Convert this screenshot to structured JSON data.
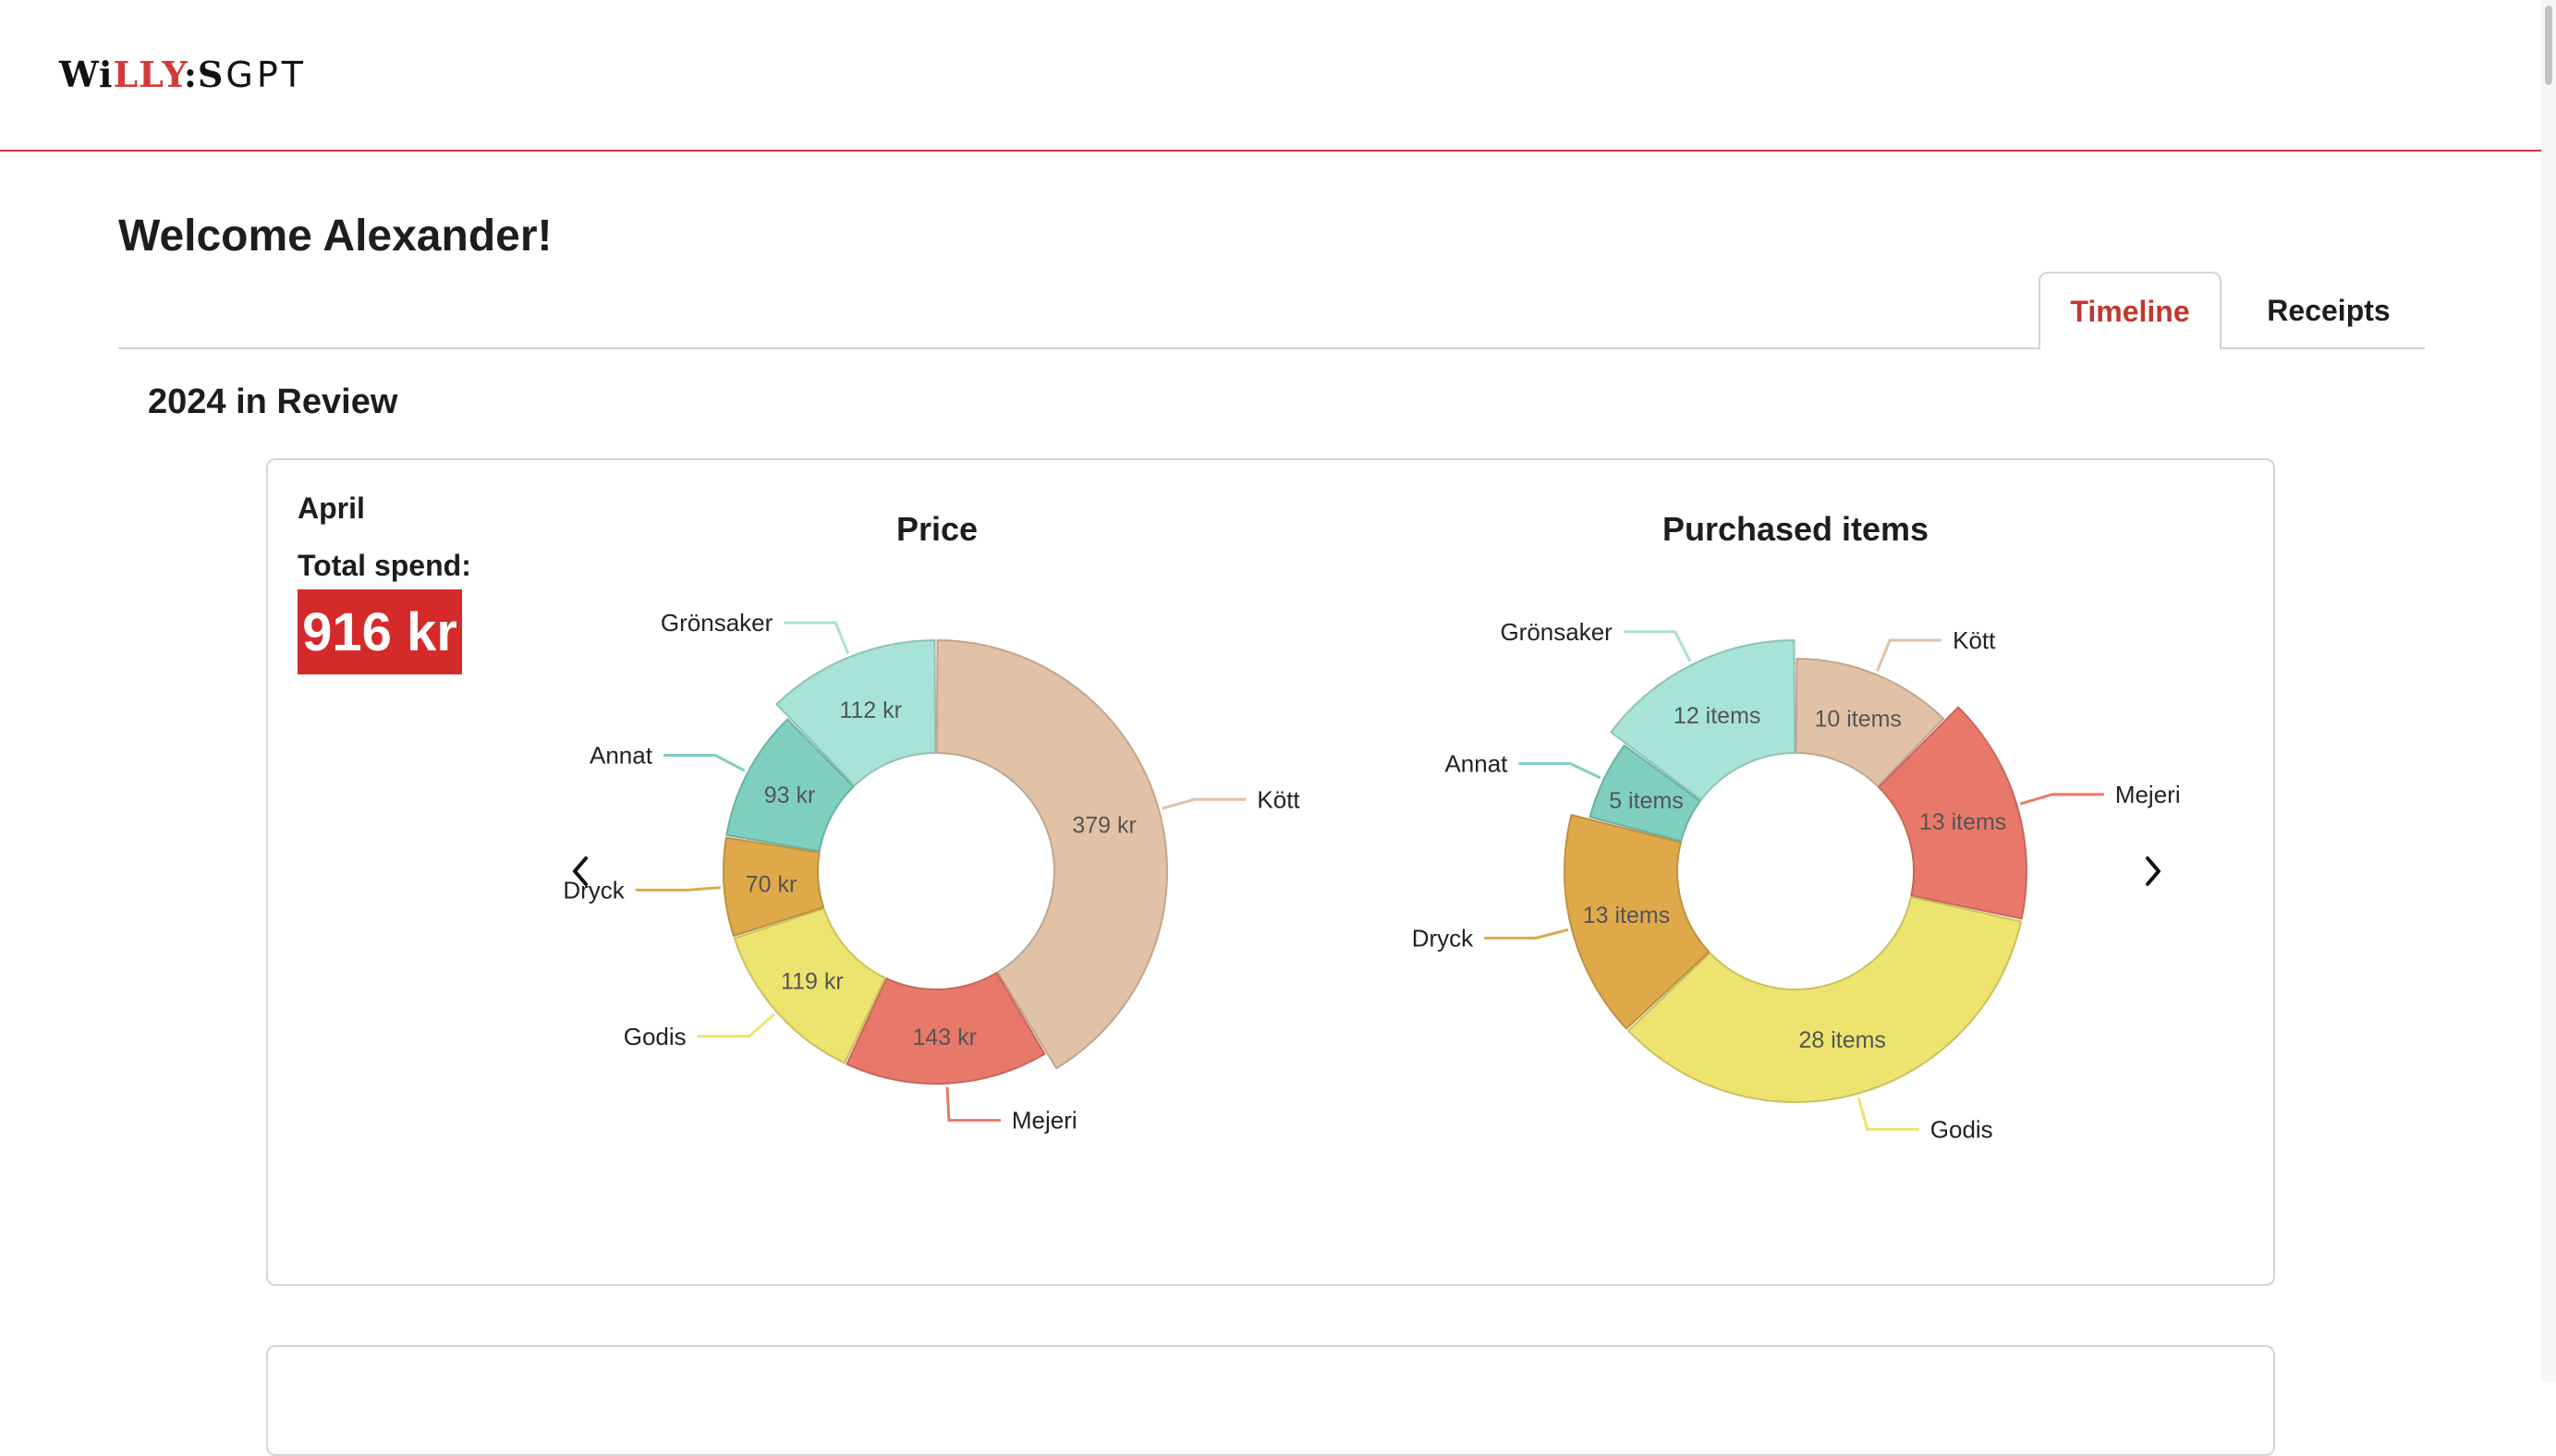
{
  "header": {
    "logo_brand_parts": [
      "Wi",
      "LLY",
      ":S"
    ],
    "logo_suffix": "GPT"
  },
  "welcome": "Welcome Alexander!",
  "tabs": [
    {
      "label": "Timeline",
      "active": true
    },
    {
      "label": "Receipts",
      "active": false
    }
  ],
  "review_title": "2024 in Review",
  "card": {
    "month": "April",
    "total_spend_label": "Total spend:",
    "total_spend_value": "916 kr"
  },
  "colors": {
    "accent": "#d23a3a",
    "Kött": "#e2c2a6",
    "Mejeri": "#e8796a",
    "Godis": "#ede36f",
    "Dryck": "#dfa94a",
    "Annat": "#7ecfc0",
    "Grönsaker": "#a8e3d8"
  },
  "chart_data": [
    {
      "type": "pie",
      "variant": "donut",
      "title": "Price",
      "unit": "kr",
      "slices": [
        {
          "label": "Kött",
          "value": 379,
          "display": "379 kr"
        },
        {
          "label": "Mejeri",
          "value": 143,
          "display": "143 kr"
        },
        {
          "label": "Godis",
          "value": 119,
          "display": "119 kr"
        },
        {
          "label": "Dryck",
          "value": 70,
          "display": "70 kr"
        },
        {
          "label": "Annat",
          "value": 93,
          "display": "93 kr"
        },
        {
          "label": "Grönsaker",
          "value": 112,
          "display": "112 kr"
        }
      ]
    },
    {
      "type": "pie",
      "variant": "donut",
      "title": "Purchased items",
      "unit": "items",
      "slices": [
        {
          "label": "Kött",
          "value": 10,
          "display": "10 items"
        },
        {
          "label": "Mejeri",
          "value": 13,
          "display": "13 items"
        },
        {
          "label": "Godis",
          "value": 28,
          "display": "28 items"
        },
        {
          "label": "Dryck",
          "value": 13,
          "display": "13 items"
        },
        {
          "label": "Annat",
          "value": 5,
          "display": "5 items"
        },
        {
          "label": "Grönsaker",
          "value": 12,
          "display": "12 items"
        }
      ]
    }
  ],
  "icons": {
    "prev": "chevron-left-icon",
    "next": "chevron-right-icon"
  }
}
